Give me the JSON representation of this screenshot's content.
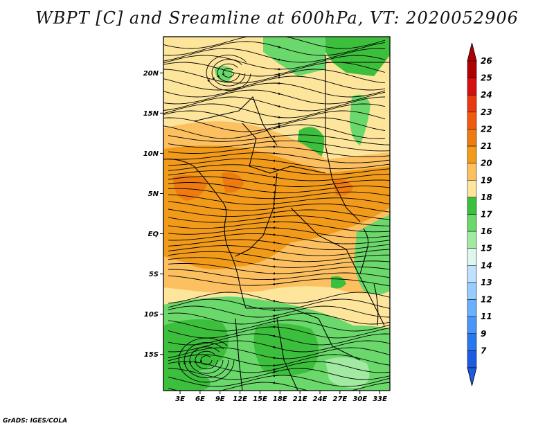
{
  "title": "WBPT [C] and Sreamline at 600hPa, VT: 2020052906",
  "footer": "GrADS: IGES/COLA",
  "map": {
    "lat_labels": [
      "20N",
      "15N",
      "10N",
      "5N",
      "EQ",
      "5S",
      "10S",
      "15S"
    ],
    "lat_values": [
      20,
      15,
      10,
      5,
      0,
      -5,
      -10,
      -15
    ],
    "lon_labels": [
      "3E",
      "6E",
      "9E",
      "12E",
      "15E",
      "18E",
      "21E",
      "24E",
      "27E",
      "30E",
      "33E"
    ],
    "lon_values": [
      3,
      6,
      9,
      12,
      15,
      18,
      21,
      24,
      27,
      30,
      33
    ],
    "lon_range": [
      0.5,
      34.5
    ],
    "lat_range": [
      -19.5,
      24.5
    ]
  },
  "colorbar": {
    "levels": [
      "26",
      "25",
      "24",
      "23",
      "22",
      "21",
      "20",
      "19",
      "18",
      "17",
      "16",
      "15",
      "14",
      "13",
      "12",
      "11",
      "9",
      "7"
    ],
    "colors": [
      "#b00000",
      "#d41010",
      "#e83a10",
      "#f05a10",
      "#ee7a10",
      "#f29a1a",
      "#fcc060",
      "#fde59c",
      "#3cbf3c",
      "#6ad86a",
      "#a2eaa2",
      "#dcf8ee",
      "#bfe0ff",
      "#96ccff",
      "#6ab0ff",
      "#4896fa",
      "#2a78ee",
      "#1c5ce0"
    ],
    "top_arrow_color": "#b00000",
    "bottom_arrow_color": "#1c5ce0"
  },
  "field_colors": {
    "green_dark": "#3cbf3c",
    "green_mid": "#6ad86a",
    "green_light": "#a2eaa2",
    "yellow_pale": "#fde59c",
    "orange_light": "#fcc060",
    "orange_mid": "#f29a1a",
    "orange_dark": "#ee7a10"
  }
}
